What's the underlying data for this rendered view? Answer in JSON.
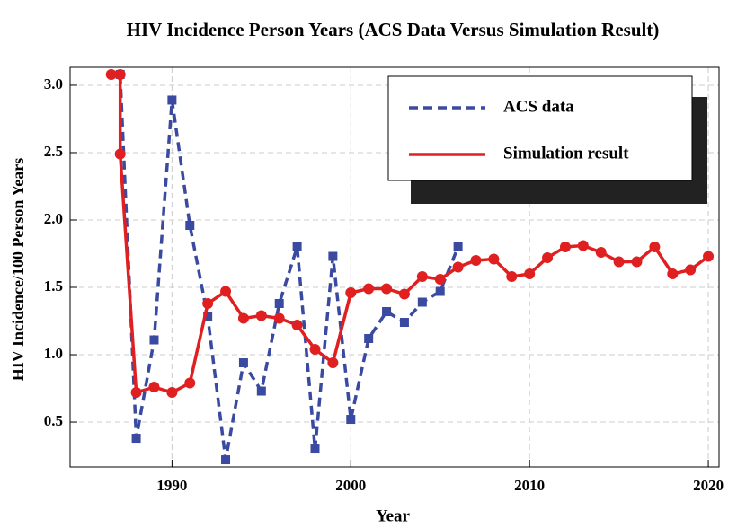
{
  "chart_data": {
    "type": "line",
    "title": "HIV Incidence Person Years (ACS Data Versus Simulation Result)",
    "x_label": "Year",
    "y_label": "HIV Incidence/100 Person Years",
    "xlim": [
      1984.3,
      2020.6
    ],
    "ylim": [
      0.167,
      3.133
    ],
    "xticks": [
      1990,
      2000,
      2010,
      2020
    ],
    "yticks": [
      0.5,
      {
        "value": 1,
        "label": "1.0"
      },
      1.5,
      {
        "value": 2,
        "label": "2.0"
      },
      2.5,
      {
        "value": 3,
        "label": "3.0"
      }
    ],
    "grid": true,
    "legend": "upper right",
    "series": [
      {
        "name": "ACS data",
        "color": "#3a4aa0",
        "dash": true,
        "marker": "square",
        "x": [
          1987.1,
          1988,
          1989,
          1990,
          1991,
          1992,
          1993,
          1994,
          1995,
          1996,
          1997,
          1998,
          1999,
          2000,
          2001,
          2002,
          2003,
          2004,
          2005,
          2006
        ],
        "values": [
          3.08,
          0.38,
          1.11,
          2.89,
          1.96,
          1.28,
          0.22,
          0.94,
          0.73,
          1.38,
          1.8,
          0.3,
          1.73,
          0.52,
          1.12,
          1.32,
          1.24,
          1.39,
          1.47,
          1.8
        ]
      },
      {
        "name": "Simulation result",
        "color": "#e02020",
        "dash": false,
        "marker": "circle",
        "x": [
          1986.6,
          1987.1,
          1987.1,
          1988,
          1989,
          1990,
          1991,
          1992,
          1993,
          1994,
          1995,
          1996,
          1997,
          1998,
          1999,
          2000,
          2001,
          2002,
          2003,
          2004,
          2005,
          2006,
          2007,
          2008,
          2009,
          2010,
          2011,
          2012,
          2013,
          2014,
          2015,
          2016,
          2017,
          2018,
          2019,
          2020
        ],
        "values": [
          3.08,
          3.08,
          2.49,
          0.72,
          0.76,
          0.72,
          0.79,
          1.38,
          1.47,
          1.27,
          1.29,
          1.27,
          1.22,
          1.04,
          0.94,
          1.46,
          1.49,
          1.49,
          1.45,
          1.58,
          1.56,
          1.65,
          1.7,
          1.71,
          1.58,
          1.6,
          1.72,
          1.8,
          1.81,
          1.76,
          1.69,
          1.69,
          1.8,
          1.6,
          1.63,
          1.73
        ]
      }
    ]
  }
}
